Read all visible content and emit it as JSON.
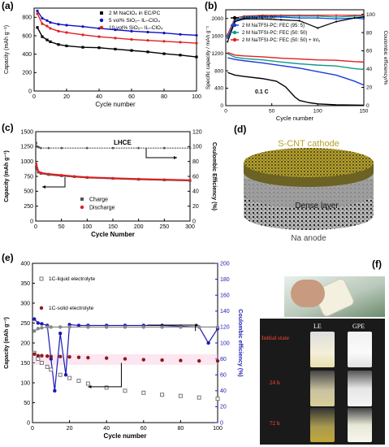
{
  "labels": {
    "a": "(a)",
    "b": "(b)",
    "c": "(c)",
    "d": "(d)",
    "e": "(e)",
    "f": "(f)"
  },
  "chart_data": [
    {
      "id": "a",
      "type": "line",
      "xlabel": "Cycle number",
      "ylabel": "Capacity (mAh g⁻¹)",
      "xlim": [
        0,
        100
      ],
      "ylim": [
        0,
        900
      ],
      "xticks": [
        0,
        20,
        40,
        60,
        80,
        100
      ],
      "yticks": [
        0,
        200,
        400,
        600,
        800
      ],
      "legend": "top-right",
      "series": [
        {
          "name": "2 M NaClO₄ in EC/PC",
          "color": "#000000",
          "marker": "square",
          "x": [
            2,
            5,
            8,
            10,
            15,
            20,
            30,
            40,
            50,
            60,
            70,
            80,
            90,
            100
          ],
          "y": [
            690,
            590,
            555,
            535,
            505,
            490,
            475,
            470,
            455,
            440,
            425,
            405,
            390,
            370
          ]
        },
        {
          "name": "5 vol% SiO₂– IL–ClO₄",
          "color": "#1010c0",
          "marker": "circle",
          "x": [
            2,
            5,
            8,
            10,
            15,
            20,
            30,
            40,
            50,
            60,
            70,
            80,
            90,
            100
          ],
          "y": [
            870,
            790,
            765,
            745,
            725,
            715,
            700,
            680,
            665,
            650,
            640,
            630,
            615,
            605
          ]
        },
        {
          "name": "10 vol% SiO₂– IL–ClO₄",
          "color": "#e02020",
          "marker": "circle",
          "x": [
            2,
            5,
            8,
            10,
            15,
            20,
            30,
            40,
            50,
            60,
            70,
            80,
            90,
            100
          ],
          "y": [
            840,
            730,
            705,
            680,
            650,
            635,
            610,
            590,
            575,
            560,
            550,
            540,
            530,
            520
          ]
        }
      ]
    },
    {
      "id": "b",
      "type": "line",
      "xlabel": "Cycle number",
      "ylabel": "Specific capacity / mAh g⁻¹",
      "ylabel2": "Coulombic efficiency/%",
      "xlim": [
        0,
        150
      ],
      "ylim": [
        0,
        2200
      ],
      "y2lim": [
        0,
        105
      ],
      "xticks": [
        0,
        50,
        100,
        150
      ],
      "yticks": [
        0,
        400,
        800,
        1200,
        1600,
        2000
      ],
      "y2ticks": [
        0,
        20,
        40,
        60,
        80,
        100
      ],
      "annotation": "0.1 C",
      "legend": "top-left",
      "series": [
        {
          "name": "2 M NaTFSI-PC",
          "color": "#000000",
          "x": [
            2,
            10,
            20,
            40,
            55,
            65,
            75,
            80,
            90,
            100,
            120,
            150
          ],
          "y": [
            760,
            700,
            670,
            620,
            560,
            430,
            200,
            120,
            70,
            40,
            20,
            10
          ]
        },
        {
          "name": "2 M NaTFSI-PC: FEC (95: 5)",
          "color": "#1a3ed6",
          "x": [
            2,
            10,
            20,
            40,
            60,
            80,
            100,
            120,
            140,
            150
          ],
          "y": [
            1100,
            1060,
            1030,
            980,
            920,
            860,
            780,
            700,
            560,
            470
          ]
        },
        {
          "name": "2 M NaTFSI-PC: FEC (50: 50)",
          "color": "#11998e",
          "x": [
            2,
            10,
            20,
            40,
            60,
            80,
            100,
            120,
            140,
            150
          ],
          "y": [
            1190,
            1110,
            1080,
            1050,
            1000,
            960,
            930,
            910,
            850,
            830
          ]
        },
        {
          "name": "2 M NaTFSI-PC: FEC (50: 50) + InI₃",
          "color": "#e02020",
          "x": [
            2,
            10,
            20,
            40,
            60,
            80,
            100,
            120,
            140,
            150
          ],
          "y": [
            1220,
            1160,
            1140,
            1120,
            1090,
            1070,
            1050,
            1040,
            1010,
            1000
          ]
        }
      ],
      "ce_series": [
        {
          "color": "#e02020",
          "x": [
            2,
            10,
            20,
            40,
            60,
            80,
            100,
            120,
            140,
            150
          ],
          "y": [
            78,
            96,
            98,
            99,
            99,
            99,
            99,
            99,
            99,
            99
          ]
        },
        {
          "color": "#11998e",
          "x": [
            2,
            10,
            20,
            40,
            60,
            80,
            100,
            120,
            140,
            150
          ],
          "y": [
            75,
            94,
            97,
            98,
            98,
            98,
            98,
            97,
            98,
            98
          ]
        },
        {
          "color": "#1a3ed6",
          "x": [
            2,
            10,
            20,
            40,
            60,
            80,
            100,
            120,
            140,
            150
          ],
          "y": [
            74,
            93,
            96,
            97,
            97,
            96,
            96,
            95,
            96,
            95
          ]
        },
        {
          "color": "#000000",
          "x": [
            2,
            10,
            20,
            40,
            60,
            80,
            100,
            120,
            140,
            150
          ],
          "y": [
            70,
            92,
            95,
            95,
            94,
            93,
            85,
            92,
            96,
            97
          ]
        }
      ]
    },
    {
      "id": "c",
      "type": "line",
      "xlabel": "Cycle Number",
      "ylabel": "Capacity (mAh g⁻¹)",
      "ylabel2": "Coulombic Efficiency (%)",
      "xlim": [
        0,
        300
      ],
      "ylim": [
        0,
        1500
      ],
      "y2lim": [
        0,
        120
      ],
      "xticks": [
        0,
        50,
        100,
        150,
        200,
        250,
        300
      ],
      "yticks": [
        0,
        250,
        500,
        750,
        1000,
        1250,
        1500
      ],
      "y2ticks": [
        0,
        20,
        40,
        60,
        80,
        100,
        120
      ],
      "annotation": "LHCE",
      "legend": "bottom-left",
      "series": [
        {
          "name": "Charge",
          "color": "#555555",
          "marker": "square",
          "x": [
            1,
            5,
            10,
            25,
            50,
            75,
            100,
            150,
            200,
            250,
            300
          ],
          "y": [
            900,
            820,
            800,
            780,
            760,
            745,
            730,
            715,
            700,
            690,
            680
          ]
        },
        {
          "name": "Discharge",
          "color": "#e02020",
          "marker": "circle",
          "x": [
            1,
            5,
            10,
            25,
            50,
            75,
            100,
            150,
            200,
            250,
            300
          ],
          "y": [
            960,
            830,
            810,
            790,
            770,
            750,
            735,
            720,
            705,
            695,
            685
          ]
        }
      ],
      "ce_series": [
        {
          "color": "#555555",
          "x": [
            1,
            3,
            6,
            10,
            25,
            50,
            100,
            150,
            200,
            250,
            300
          ],
          "y": [
            105,
            100,
            99,
            98,
            98,
            98,
            98,
            98,
            98,
            98,
            98
          ]
        }
      ]
    },
    {
      "id": "e",
      "type": "scatter",
      "xlabel": "Cycle number",
      "ylabel": "Capacity (mAh g⁻¹)",
      "ylabel2": "Coulombic efficiency (%)",
      "xlim": [
        0,
        100
      ],
      "ylim": [
        0,
        400
      ],
      "y2lim": [
        0,
        200
      ],
      "xticks": [
        0,
        20,
        40,
        60,
        80,
        100
      ],
      "yticks": [
        0,
        50,
        100,
        150,
        200,
        250,
        300,
        350,
        400
      ],
      "y2ticks": [
        0,
        20,
        40,
        60,
        80,
        100,
        120,
        140,
        160,
        180,
        200
      ],
      "legend": "top-left",
      "series": [
        {
          "name": "1C-liquid electrolyte",
          "color": "#777777",
          "marker": "open-square",
          "x": [
            1,
            3,
            5,
            8,
            10,
            15,
            20,
            25,
            30,
            40,
            50,
            60,
            70,
            80,
            90,
            100
          ],
          "y": [
            175,
            160,
            150,
            140,
            133,
            120,
            112,
            105,
            98,
            88,
            80,
            75,
            70,
            67,
            63,
            60
          ]
        },
        {
          "name": "1C-solid electrolyte",
          "color": "#8b1a1a",
          "marker": "circle",
          "x": [
            1,
            3,
            5,
            8,
            10,
            15,
            20,
            25,
            30,
            40,
            50,
            60,
            70,
            80,
            90,
            100
          ],
          "y": [
            172,
            168,
            168,
            167,
            166,
            166,
            165,
            164,
            163,
            162,
            160,
            158,
            157,
            156,
            155,
            155
          ]
        }
      ],
      "ce_series": [
        {
          "color": "#1a1ab4",
          "x": [
            1,
            3,
            5,
            8,
            10,
            12,
            15,
            18,
            20,
            25,
            30,
            40,
            50,
            60,
            70,
            80,
            90,
            95,
            100
          ],
          "y": [
            130,
            125,
            124,
            122,
            80,
            40,
            112,
            60,
            123,
            122,
            122,
            122,
            122,
            122,
            122,
            121,
            120,
            100,
            118
          ]
        },
        {
          "color": "#888888",
          "x": [
            1,
            3,
            5,
            8,
            10,
            15,
            20,
            30,
            40,
            50,
            60,
            70,
            80,
            90,
            100
          ],
          "y": [
            115,
            118,
            119,
            120,
            120,
            120,
            120,
            120,
            120,
            120,
            120,
            120,
            120,
            120,
            120
          ]
        }
      ]
    }
  ],
  "panel_d": {
    "top_label": "S-CNT cathode",
    "mid_label": "Dense layer",
    "bottom_label": "Na anode"
  },
  "panel_f": {
    "col1": "LE",
    "col2": "GPE",
    "rows": [
      "Initial state",
      "24 h",
      "72 h"
    ]
  }
}
